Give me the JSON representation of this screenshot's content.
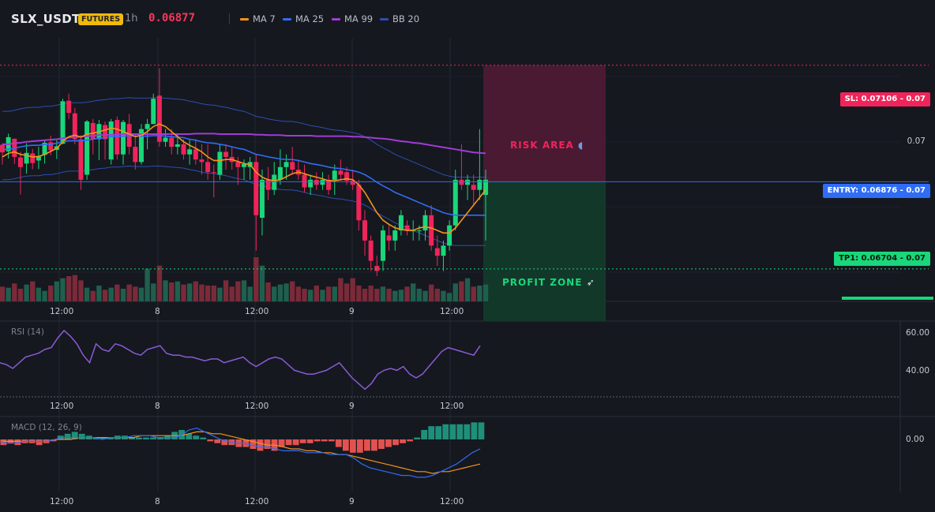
{
  "header": {
    "symbol": "SLX_USDT",
    "badge": "FUTURES",
    "timeframe": "1h",
    "price": "0.06877",
    "legend": [
      {
        "name": "MA 7",
        "color": "#f7931a"
      },
      {
        "name": "MA 25",
        "color": "#2f6df6"
      },
      {
        "name": "MA 99",
        "color": "#a23bd6"
      },
      {
        "name": "BB 20",
        "color": "#2c4fb0"
      }
    ]
  },
  "price_axis": {
    "mid_label": "0.07"
  },
  "levels": {
    "sl": {
      "text": "SL: 0.07106 - 0.07",
      "value": 0.07106,
      "color": "#f0245a"
    },
    "entry": {
      "text": "ENTRY: 0.06876 - 0.07",
      "value": 0.06876,
      "color": "#2f6df6"
    },
    "tp1": {
      "text": "TP1: 0.06704 - 0.07",
      "value": 0.06704,
      "color": "#19d77a"
    }
  },
  "zones": {
    "risk": {
      "label": "RISK AREA",
      "icon": "shield-icon"
    },
    "profit": {
      "label": "PROFIT ZONE",
      "icon": "rocket-icon"
    }
  },
  "time_axis": [
    "12:00",
    "8",
    "12:00",
    "9",
    "12:00"
  ],
  "rsi": {
    "title": "RSI (14)",
    "ticks": [
      "60.00",
      "40.00"
    ]
  },
  "macd": {
    "title": "MACD (12, 26, 9)",
    "ticks": [
      "0.00"
    ]
  },
  "chart_data": [
    {
      "type": "candlestick",
      "title": "SLX_USDT 1h",
      "ylim": [
        0.0664,
        0.0716
      ],
      "candles": [
        [
          0.06949,
          0.06952,
          0.0691,
          0.06934
        ],
        [
          0.06936,
          0.06971,
          0.06922,
          0.06964
        ],
        [
          0.06961,
          0.06961,
          0.06911,
          0.06925
        ],
        [
          0.06924,
          0.06935,
          0.06851,
          0.06905
        ],
        [
          0.06912,
          0.06952,
          0.06892,
          0.06933
        ],
        [
          0.06932,
          0.06941,
          0.06901,
          0.06913
        ],
        [
          0.06918,
          0.06945,
          0.06901,
          0.06927
        ],
        [
          0.06929,
          0.06958,
          0.06912,
          0.06953
        ],
        [
          0.06954,
          0.06967,
          0.06928,
          0.06938
        ],
        [
          0.06939,
          0.06958,
          0.06921,
          0.06946
        ],
        [
          0.06951,
          0.0704,
          0.0695,
          0.07035
        ],
        [
          0.07036,
          0.0705,
          0.07,
          0.07012
        ],
        [
          0.07011,
          0.07022,
          0.0695,
          0.0696
        ],
        [
          0.0696,
          0.06968,
          0.0686,
          0.0688
        ],
        [
          0.0689,
          0.06998,
          0.0688,
          0.06995
        ],
        [
          0.06992,
          0.07,
          0.0693,
          0.0696
        ],
        [
          0.0696,
          0.06998,
          0.06919,
          0.0699
        ],
        [
          0.06988,
          0.06995,
          0.0692,
          0.0696
        ],
        [
          0.0692,
          0.07,
          0.0691,
          0.06995
        ],
        [
          0.06998,
          0.07005,
          0.0692,
          0.0693
        ],
        [
          0.0693,
          0.06998,
          0.0691,
          0.06994
        ],
        [
          0.0699,
          0.0701,
          0.0693,
          0.06945
        ],
        [
          0.06945,
          0.0697,
          0.069,
          0.06915
        ],
        [
          0.06915,
          0.0699,
          0.0691,
          0.0698
        ],
        [
          0.0698,
          0.07,
          0.0694,
          0.0699
        ],
        [
          0.0699,
          0.0705,
          0.0699,
          0.0704
        ],
        [
          0.07046,
          0.071,
          0.06945,
          0.06955
        ],
        [
          0.06955,
          0.0698,
          0.06945,
          0.06963
        ],
        [
          0.06963,
          0.0698,
          0.0693,
          0.06945
        ],
        [
          0.06945,
          0.0697,
          0.0693,
          0.0695
        ],
        [
          0.0695,
          0.0696,
          0.0692,
          0.0693
        ],
        [
          0.0693,
          0.0696,
          0.0691,
          0.0694
        ],
        [
          0.0694,
          0.0696,
          0.0691,
          0.0692
        ],
        [
          0.0692,
          0.0695,
          0.0689,
          0.06915
        ],
        [
          0.06915,
          0.0695,
          0.0688,
          0.06895
        ],
        [
          0.06895,
          0.0691,
          0.06845,
          0.06894
        ],
        [
          0.0689,
          0.0695,
          0.0688,
          0.06935
        ],
        [
          0.06935,
          0.0695,
          0.069,
          0.06925
        ],
        [
          0.06925,
          0.06945,
          0.069,
          0.06915
        ],
        [
          0.06915,
          0.06925,
          0.0687,
          0.06905
        ],
        [
          0.06905,
          0.0692,
          0.0688,
          0.06911
        ],
        [
          0.06905,
          0.06925,
          0.0688,
          0.06915
        ],
        [
          0.06915,
          0.0693,
          0.0674,
          0.0681
        ],
        [
          0.06805,
          0.069,
          0.0677,
          0.0688
        ],
        [
          0.0688,
          0.06905,
          0.0684,
          0.0686
        ],
        [
          0.0686,
          0.06915,
          0.0685,
          0.0689
        ],
        [
          0.0688,
          0.0694,
          0.0687,
          0.06905
        ],
        [
          0.06905,
          0.0693,
          0.0688,
          0.06915
        ],
        [
          0.06915,
          0.06945,
          0.0689,
          0.069
        ],
        [
          0.069,
          0.0692,
          0.0688,
          0.0689
        ],
        [
          0.0689,
          0.0691,
          0.06855,
          0.06865
        ],
        [
          0.06865,
          0.0689,
          0.0685,
          0.0688
        ],
        [
          0.0688,
          0.06895,
          0.0686,
          0.0687
        ],
        [
          0.0687,
          0.06895,
          0.0686,
          0.0688
        ],
        [
          0.0688,
          0.0689,
          0.0685,
          0.0686
        ],
        [
          0.0688,
          0.0691,
          0.0685,
          0.06898
        ],
        [
          0.06898,
          0.0692,
          0.0688,
          0.0689
        ],
        [
          0.06895,
          0.06905,
          0.0687,
          0.06878
        ],
        [
          0.06878,
          0.069,
          0.0686,
          0.0687
        ],
        [
          0.0687,
          0.0688,
          0.0678,
          0.068
        ],
        [
          0.068,
          0.0682,
          0.0673,
          0.0676
        ],
        [
          0.0676,
          0.0677,
          0.067,
          0.0672
        ],
        [
          0.0671,
          0.0673,
          0.0669,
          0.067
        ],
        [
          0.0672,
          0.0679,
          0.067,
          0.0678
        ],
        [
          0.0677,
          0.0679,
          0.0674,
          0.0676
        ],
        [
          0.0676,
          0.0679,
          0.0674,
          0.0678
        ],
        [
          0.0678,
          0.0682,
          0.0677,
          0.0681
        ],
        [
          0.0679,
          0.068,
          0.0677,
          0.0678
        ],
        [
          0.0678,
          0.068,
          0.0676,
          0.0678
        ],
        [
          0.0678,
          0.0679,
          0.0676,
          0.0678
        ],
        [
          0.0678,
          0.0682,
          0.0676,
          0.0681
        ],
        [
          0.0681,
          0.0683,
          0.0674,
          0.0675
        ],
        [
          0.06745,
          0.0677,
          0.0671,
          0.0673
        ],
        [
          0.0673,
          0.0676,
          0.067,
          0.0675
        ],
        [
          0.0675,
          0.068,
          0.0674,
          0.0679
        ],
        [
          0.0679,
          0.069,
          0.0678,
          0.0688
        ],
        [
          0.0688,
          0.0695,
          0.0686,
          0.0687
        ],
        [
          0.0687,
          0.0689,
          0.0684,
          0.0688
        ],
        [
          0.0687,
          0.0689,
          0.0683,
          0.0686
        ],
        [
          0.0686,
          0.0698,
          0.0684,
          0.0688
        ],
        [
          0.0685,
          0.069,
          0.0676,
          0.0688
        ]
      ],
      "ma7": [
        0.06925,
        0.06932,
        0.06935,
        0.0693,
        0.06928,
        0.06925,
        0.06926,
        0.0693,
        0.06936,
        0.06942,
        0.06955,
        0.06965,
        0.06968,
        0.06964,
        0.0697,
        0.06972,
        0.06975,
        0.06978,
        0.06982,
        0.0698,
        0.06975,
        0.0697,
        0.06965,
        0.06968,
        0.06975,
        0.06985,
        0.0699,
        0.06985,
        0.06975,
        0.06965,
        0.06955,
        0.06948,
        0.06942,
        0.06935,
        0.06925,
        0.06918,
        0.06918,
        0.0692,
        0.0692,
        0.06916,
        0.06912,
        0.0691,
        0.06895,
        0.06885,
        0.0688,
        0.06878,
        0.0688,
        0.06886,
        0.06892,
        0.06895,
        0.06892,
        0.06888,
        0.06885,
        0.06882,
        0.06878,
        0.06878,
        0.0688,
        0.06882,
        0.0688,
        0.0687,
        0.06855,
        0.06835,
        0.06815,
        0.068,
        0.06792,
        0.06785,
        0.06782,
        0.0678,
        0.0678,
        0.06785,
        0.06787,
        0.06785,
        0.0678,
        0.06775,
        0.06775,
        0.06785,
        0.068,
        0.06815,
        0.0683,
        0.06845,
        0.0686
      ],
      "ma25": [
        0.0694,
        0.0694,
        0.06942,
        0.06945,
        0.06947,
        0.06948,
        0.06948,
        0.0695,
        0.0695,
        0.06952,
        0.06955,
        0.06957,
        0.06957,
        0.06957,
        0.06958,
        0.0696,
        0.06962,
        0.06963,
        0.06965,
        0.06965,
        0.06966,
        0.06967,
        0.06966,
        0.06966,
        0.06966,
        0.06967,
        0.06967,
        0.06966,
        0.06965,
        0.06964,
        0.06963,
        0.0696,
        0.06958,
        0.06955,
        0.06953,
        0.06952,
        0.0695,
        0.06948,
        0.06945,
        0.06942,
        0.0694,
        0.06935,
        0.0693,
        0.06928,
        0.06925,
        0.06923,
        0.06921,
        0.0692,
        0.0692,
        0.06918,
        0.06915,
        0.06912,
        0.0691,
        0.06908,
        0.06905,
        0.06903,
        0.06902,
        0.069,
        0.06898,
        0.06895,
        0.0689,
        0.06883,
        0.06875,
        0.06868,
        0.06862,
        0.06855,
        0.0685,
        0.06845,
        0.0684,
        0.06835,
        0.0683,
        0.06825,
        0.0682,
        0.06815,
        0.06812,
        0.0681,
        0.0681,
        0.0681,
        0.0681,
        0.0681,
        0.0681
      ],
      "ma99": [
        0.0695,
        0.0695,
        0.06952,
        0.06953,
        0.06955,
        0.06956,
        0.06957,
        0.06958,
        0.06959,
        0.0696,
        0.06962,
        0.06963,
        0.06964,
        0.06965,
        0.06966,
        0.06967,
        0.06968,
        0.06968,
        0.06969,
        0.06969,
        0.0697,
        0.0697,
        0.0697,
        0.0697,
        0.0697,
        0.0697,
        0.0697,
        0.0697,
        0.0697,
        0.0697,
        0.0697,
        0.0697,
        0.06971,
        0.06971,
        0.06971,
        0.06971,
        0.0697,
        0.0697,
        0.0697,
        0.0697,
        0.0697,
        0.0697,
        0.06969,
        0.06969,
        0.06968,
        0.06968,
        0.06968,
        0.06967,
        0.06967,
        0.06967,
        0.06967,
        0.06967,
        0.06966,
        0.06966,
        0.06966,
        0.06966,
        0.06966,
        0.06966,
        0.06965,
        0.06965,
        0.06964,
        0.06963,
        0.06962,
        0.06961,
        0.0696,
        0.06958,
        0.06956,
        0.06955,
        0.06953,
        0.06952,
        0.0695,
        0.06948,
        0.06946,
        0.06944,
        0.06942,
        0.0694,
        0.06938,
        0.06936,
        0.06934,
        0.06933,
        0.06932
      ],
      "volume": [
        14,
        13,
        17,
        12,
        16,
        19,
        13,
        10,
        15,
        19,
        22,
        24,
        25,
        20,
        13,
        10,
        15,
        11,
        13,
        16,
        12,
        16,
        14,
        13,
        31,
        17,
        34,
        20,
        18,
        19,
        16,
        17,
        19,
        16,
        15,
        15,
        13,
        20,
        14,
        19,
        20,
        14,
        42,
        34,
        18,
        14,
        16,
        17,
        19,
        14,
        12,
        11,
        15,
        11,
        14,
        14,
        22,
        17,
        22,
        15,
        12,
        15,
        12,
        14,
        12,
        10,
        11,
        14,
        17,
        12,
        10,
        16,
        12,
        10,
        8,
        17,
        19,
        22,
        14,
        15,
        16
      ]
    },
    {
      "type": "line",
      "title": "RSI (14)",
      "ylim": [
        30,
        70
      ],
      "values": [
        48,
        47,
        45,
        48,
        51,
        52,
        53,
        55,
        56,
        61,
        65,
        62,
        58,
        52,
        48,
        58,
        55,
        54,
        58,
        57,
        55,
        53,
        52,
        55,
        56,
        57,
        53,
        52,
        52,
        51,
        51,
        50,
        49,
        50,
        50,
        48,
        49,
        50,
        51,
        48,
        46,
        48,
        50,
        51,
        50,
        47,
        44,
        43,
        42,
        42,
        43,
        44,
        46,
        48,
        44,
        40,
        37,
        34,
        37,
        42,
        44,
        45,
        44,
        46,
        42,
        40,
        42,
        46,
        50,
        54,
        56,
        55,
        54,
        53,
        52,
        57
      ]
    },
    {
      "type": "bar",
      "title": "MACD (12, 26, 9)",
      "histogram": [
        -3,
        -2,
        -3,
        -2,
        -2,
        -3,
        -2,
        -1,
        2,
        3,
        4,
        3,
        2,
        1,
        1,
        1,
        2,
        2,
        1,
        1,
        1,
        1,
        1,
        2,
        4,
        5,
        3,
        2,
        1,
        -1,
        -2,
        -3,
        -3,
        -4,
        -4,
        -5,
        -6,
        -5,
        -6,
        -4,
        -3,
        -3,
        -2,
        -2,
        -1,
        -1,
        -1,
        -4,
        -6,
        -7,
        -7,
        -6,
        -6,
        -5,
        -4,
        -3,
        -2,
        -1,
        1,
        5,
        7,
        7,
        8,
        8,
        8,
        8,
        9,
        9
      ],
      "macd": [
        -1,
        -2,
        -2,
        -1,
        -1,
        -1,
        -1,
        0,
        1,
        1,
        1,
        1,
        1,
        0,
        1,
        1,
        1,
        2,
        2,
        2,
        1,
        1,
        1,
        2,
        5,
        6,
        4,
        2,
        0,
        -1,
        -2,
        -2,
        -3,
        -4,
        -4,
        -5,
        -6,
        -6,
        -6,
        -7,
        -7,
        -7,
        -8,
        -8,
        -8,
        -10,
        -13,
        -15,
        -16,
        -17,
        -18,
        -19,
        -19,
        -20,
        -20,
        -19,
        -17,
        -15,
        -13,
        -10,
        -7,
        -5
      ],
      "signal": [
        -1,
        -1,
        -1,
        -1,
        -1,
        -1,
        -1,
        0,
        0,
        0,
        1,
        1,
        1,
        1,
        1,
        1,
        1,
        1,
        2,
        2,
        2,
        2,
        2,
        2,
        3,
        4,
        4,
        3,
        3,
        2,
        1,
        0,
        -1,
        -2,
        -3,
        -3,
        -4,
        -5,
        -5,
        -6,
        -6,
        -7,
        -7,
        -8,
        -8,
        -9,
        -10,
        -11,
        -12,
        -13,
        -14,
        -15,
        -16,
        -17,
        -17,
        -18,
        -17,
        -17,
        -16,
        -15,
        -14,
        -13
      ]
    }
  ]
}
